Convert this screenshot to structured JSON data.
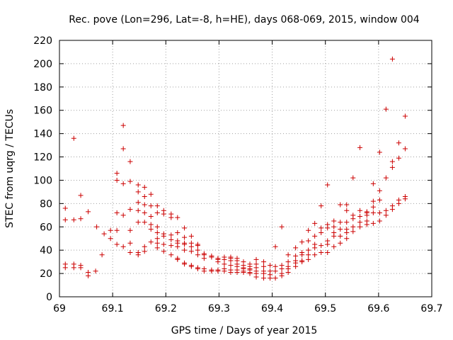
{
  "chart_data": {
    "type": "scatter",
    "title": "Rec. pove (Lon=296, Lat=-8, h=HE), days 068-069, 2015, window 004",
    "xlabel": "GPS time / Days of year 2015",
    "ylabel": "STEC from uqrg / TECUs",
    "xlim": [
      69.0,
      69.7
    ],
    "ylim": [
      0,
      220
    ],
    "xticks": [
      "69",
      "69.1",
      "69.2",
      "69.3",
      "69.4",
      "69.5",
      "69.6",
      "69.7"
    ],
    "yticks": [
      "0",
      "20",
      "40",
      "60",
      "80",
      "100",
      "120",
      "140",
      "160",
      "180",
      "200",
      "220"
    ],
    "grid": true,
    "marker": "+",
    "color": "#cc0000",
    "points": [
      [
        69.011,
        76
      ],
      [
        69.011,
        66
      ],
      [
        69.011,
        28
      ],
      [
        69.011,
        25
      ],
      [
        69.027,
        136
      ],
      [
        69.027,
        66
      ],
      [
        69.027,
        28
      ],
      [
        69.027,
        25
      ],
      [
        69.04,
        87
      ],
      [
        69.04,
        67
      ],
      [
        69.04,
        27
      ],
      [
        69.04,
        25
      ],
      [
        69.054,
        73
      ],
      [
        69.054,
        21
      ],
      [
        69.054,
        18
      ],
      [
        69.068,
        22
      ],
      [
        69.07,
        60
      ],
      [
        69.08,
        36
      ],
      [
        69.084,
        54
      ],
      [
        69.096,
        57
      ],
      [
        69.096,
        50
      ],
      [
        69.108,
        106
      ],
      [
        69.108,
        100
      ],
      [
        69.108,
        72
      ],
      [
        69.108,
        57
      ],
      [
        69.108,
        45
      ],
      [
        69.12,
        147
      ],
      [
        69.12,
        127
      ],
      [
        69.12,
        97
      ],
      [
        69.12,
        70
      ],
      [
        69.12,
        43
      ],
      [
        69.133,
        116
      ],
      [
        69.133,
        99
      ],
      [
        69.133,
        75
      ],
      [
        69.133,
        57
      ],
      [
        69.133,
        46
      ],
      [
        69.133,
        38
      ],
      [
        69.148,
        96
      ],
      [
        69.148,
        90
      ],
      [
        69.148,
        81
      ],
      [
        69.148,
        74
      ],
      [
        69.148,
        64
      ],
      [
        69.148,
        38
      ],
      [
        69.148,
        36
      ],
      [
        69.16,
        94
      ],
      [
        69.16,
        86
      ],
      [
        69.16,
        79
      ],
      [
        69.16,
        72
      ],
      [
        69.16,
        64
      ],
      [
        69.16,
        43
      ],
      [
        69.16,
        39
      ],
      [
        69.172,
        88
      ],
      [
        69.172,
        78
      ],
      [
        69.172,
        69
      ],
      [
        69.172,
        62
      ],
      [
        69.172,
        58
      ],
      [
        69.172,
        47
      ],
      [
        69.184,
        78
      ],
      [
        69.184,
        72
      ],
      [
        69.184,
        60
      ],
      [
        69.184,
        55
      ],
      [
        69.184,
        50
      ],
      [
        69.184,
        46
      ],
      [
        69.184,
        42
      ],
      [
        69.196,
        74
      ],
      [
        69.196,
        71
      ],
      [
        69.196,
        54
      ],
      [
        69.196,
        52
      ],
      [
        69.196,
        45
      ],
      [
        69.196,
        39
      ],
      [
        69.21,
        71
      ],
      [
        69.21,
        68
      ],
      [
        69.21,
        53
      ],
      [
        69.21,
        49
      ],
      [
        69.21,
        44
      ],
      [
        69.21,
        36
      ],
      [
        69.222,
        68
      ],
      [
        69.222,
        55
      ],
      [
        69.222,
        48
      ],
      [
        69.222,
        46
      ],
      [
        69.222,
        43
      ],
      [
        69.222,
        33
      ],
      [
        69.222,
        32
      ],
      [
        69.235,
        59
      ],
      [
        69.235,
        51
      ],
      [
        69.235,
        46
      ],
      [
        69.235,
        45
      ],
      [
        69.235,
        40
      ],
      [
        69.235,
        29
      ],
      [
        69.235,
        28
      ],
      [
        69.248,
        52
      ],
      [
        69.248,
        46
      ],
      [
        69.248,
        43
      ],
      [
        69.248,
        39
      ],
      [
        69.248,
        27
      ],
      [
        69.248,
        26
      ],
      [
        69.26,
        45
      ],
      [
        69.26,
        44
      ],
      [
        69.26,
        40
      ],
      [
        69.26,
        36
      ],
      [
        69.26,
        25
      ],
      [
        69.26,
        24
      ],
      [
        69.272,
        37
      ],
      [
        69.272,
        36
      ],
      [
        69.272,
        33
      ],
      [
        69.272,
        24
      ],
      [
        69.272,
        22
      ],
      [
        69.286,
        35
      ],
      [
        69.286,
        34
      ],
      [
        69.286,
        23
      ],
      [
        69.286,
        22
      ],
      [
        69.298,
        33
      ],
      [
        69.298,
        32
      ],
      [
        69.298,
        30
      ],
      [
        69.298,
        23
      ],
      [
        69.298,
        22
      ],
      [
        69.31,
        34
      ],
      [
        69.31,
        32
      ],
      [
        69.31,
        28
      ],
      [
        69.31,
        24
      ],
      [
        69.31,
        22
      ],
      [
        69.322,
        34
      ],
      [
        69.322,
        33
      ],
      [
        69.322,
        31
      ],
      [
        69.322,
        27
      ],
      [
        69.322,
        23
      ],
      [
        69.322,
        21
      ],
      [
        69.334,
        33
      ],
      [
        69.334,
        31
      ],
      [
        69.334,
        28
      ],
      [
        69.334,
        26
      ],
      [
        69.334,
        23
      ],
      [
        69.334,
        21
      ],
      [
        69.346,
        30
      ],
      [
        69.346,
        27
      ],
      [
        69.346,
        25
      ],
      [
        69.346,
        24
      ],
      [
        69.346,
        22
      ],
      [
        69.346,
        21
      ],
      [
        69.358,
        28
      ],
      [
        69.358,
        26
      ],
      [
        69.358,
        24
      ],
      [
        69.358,
        23
      ],
      [
        69.358,
        21
      ],
      [
        69.358,
        20
      ],
      [
        69.37,
        32
      ],
      [
        69.37,
        28
      ],
      [
        69.37,
        25
      ],
      [
        69.37,
        22
      ],
      [
        69.37,
        20
      ],
      [
        69.37,
        17
      ],
      [
        69.384,
        30
      ],
      [
        69.384,
        26
      ],
      [
        69.384,
        22
      ],
      [
        69.384,
        20
      ],
      [
        69.384,
        16
      ],
      [
        69.396,
        27
      ],
      [
        69.396,
        22
      ],
      [
        69.396,
        19
      ],
      [
        69.396,
        16
      ],
      [
        69.406,
        43
      ],
      [
        69.406,
        26
      ],
      [
        69.406,
        22
      ],
      [
        69.406,
        16
      ],
      [
        69.418,
        60
      ],
      [
        69.418,
        27
      ],
      [
        69.418,
        24
      ],
      [
        69.418,
        20
      ],
      [
        69.418,
        18
      ],
      [
        69.43,
        36
      ],
      [
        69.43,
        30
      ],
      [
        69.43,
        26
      ],
      [
        69.43,
        24
      ],
      [
        69.43,
        21
      ],
      [
        69.444,
        42
      ],
      [
        69.444,
        35
      ],
      [
        69.444,
        31
      ],
      [
        69.444,
        29
      ],
      [
        69.444,
        26
      ],
      [
        69.456,
        47
      ],
      [
        69.456,
        38
      ],
      [
        69.456,
        36
      ],
      [
        69.456,
        31
      ],
      [
        69.456,
        30
      ],
      [
        69.468,
        57
      ],
      [
        69.468,
        48
      ],
      [
        69.468,
        40
      ],
      [
        69.468,
        36
      ],
      [
        69.468,
        32
      ],
      [
        69.48,
        63
      ],
      [
        69.48,
        52
      ],
      [
        69.48,
        45
      ],
      [
        69.48,
        42
      ],
      [
        69.48,
        36
      ],
      [
        69.492,
        78
      ],
      [
        69.492,
        59
      ],
      [
        69.492,
        55
      ],
      [
        69.492,
        44
      ],
      [
        69.492,
        38
      ],
      [
        69.504,
        96
      ],
      [
        69.504,
        62
      ],
      [
        69.504,
        59
      ],
      [
        69.504,
        48
      ],
      [
        69.504,
        45
      ],
      [
        69.504,
        38
      ],
      [
        69.516,
        65
      ],
      [
        69.516,
        60
      ],
      [
        69.516,
        55
      ],
      [
        69.516,
        52
      ],
      [
        69.516,
        43
      ],
      [
        69.528,
        79
      ],
      [
        69.528,
        64
      ],
      [
        69.528,
        58
      ],
      [
        69.528,
        52
      ],
      [
        69.528,
        46
      ],
      [
        69.54,
        79
      ],
      [
        69.54,
        74
      ],
      [
        69.54,
        64
      ],
      [
        69.54,
        58
      ],
      [
        69.54,
        55
      ],
      [
        69.54,
        50
      ],
      [
        69.552,
        102
      ],
      [
        69.552,
        70
      ],
      [
        69.552,
        67
      ],
      [
        69.552,
        60
      ],
      [
        69.552,
        56
      ],
      [
        69.565,
        128
      ],
      [
        69.565,
        74
      ],
      [
        69.565,
        69
      ],
      [
        69.565,
        64
      ],
      [
        69.565,
        60
      ],
      [
        69.578,
        73
      ],
      [
        69.578,
        72
      ],
      [
        69.578,
        70
      ],
      [
        69.578,
        65
      ],
      [
        69.578,
        62
      ],
      [
        69.59,
        97
      ],
      [
        69.59,
        82
      ],
      [
        69.59,
        77
      ],
      [
        69.59,
        72
      ],
      [
        69.59,
        63
      ],
      [
        69.602,
        124
      ],
      [
        69.602,
        91
      ],
      [
        69.602,
        83
      ],
      [
        69.602,
        72
      ],
      [
        69.602,
        65
      ],
      [
        69.614,
        161
      ],
      [
        69.614,
        102
      ],
      [
        69.614,
        74
      ],
      [
        69.614,
        70
      ],
      [
        69.626,
        204
      ],
      [
        69.626,
        116
      ],
      [
        69.626,
        111
      ],
      [
        69.626,
        78
      ],
      [
        69.626,
        75
      ],
      [
        69.638,
        132
      ],
      [
        69.638,
        119
      ],
      [
        69.638,
        83
      ],
      [
        69.638,
        80
      ],
      [
        69.65,
        155
      ],
      [
        69.65,
        127
      ],
      [
        69.65,
        86
      ],
      [
        69.65,
        84
      ]
    ]
  }
}
